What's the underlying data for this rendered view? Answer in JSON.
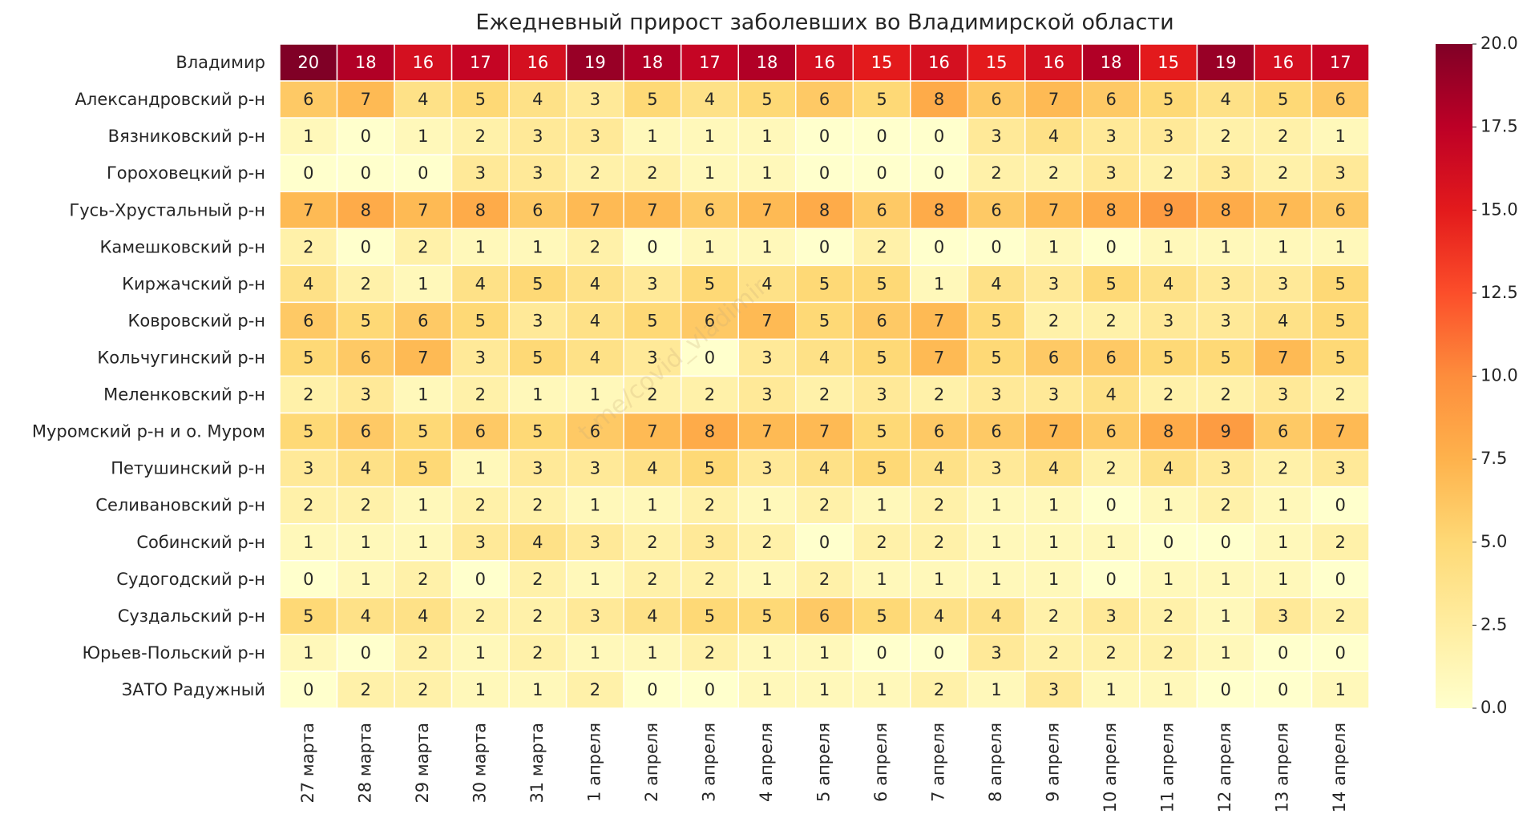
{
  "chart_data": {
    "type": "heatmap",
    "title": "Ежедневный прирост заболевших во Владимирской области",
    "watermark": "t.me/covid_vladimir",
    "categories": [
      "27 марта",
      "28 марта",
      "29 марта",
      "30 марта",
      "31 марта",
      "1 апреля",
      "2 апреля",
      "3 апреля",
      "4 апреля",
      "5 апреля",
      "6 апреля",
      "7 апреля",
      "8 апреля",
      "9 апреля",
      "10 апреля",
      "11 апреля",
      "12 апреля",
      "13 апреля",
      "14 апреля"
    ],
    "rows": [
      "Владимир",
      "Александровский р-н",
      "Вязниковский р-н",
      "Гороховецкий р-н",
      "Гусь-Хрустальный р-н",
      "Камешковский р-н",
      "Киржачский р-н",
      "Ковровский р-н",
      "Кольчугинский р-н",
      "Меленковский р-н",
      "Муромский р-н и о. Муром",
      "Петушинский р-н",
      "Селивановский р-н",
      "Собинский р-н",
      "Судогодский р-н",
      "Суздальский р-н",
      "Юрьев-Польский р-н",
      "ЗАТО Радужный"
    ],
    "values": [
      [
        20,
        18,
        16,
        17,
        16,
        19,
        18,
        17,
        18,
        16,
        15,
        16,
        15,
        16,
        18,
        15,
        19,
        16,
        17
      ],
      [
        6,
        7,
        4,
        5,
        4,
        3,
        5,
        4,
        5,
        6,
        5,
        8,
        6,
        7,
        6,
        5,
        4,
        5,
        6
      ],
      [
        1,
        0,
        1,
        2,
        3,
        3,
        1,
        1,
        1,
        0,
        0,
        0,
        3,
        4,
        3,
        3,
        2,
        2,
        1
      ],
      [
        0,
        0,
        0,
        3,
        3,
        2,
        2,
        1,
        1,
        0,
        0,
        0,
        2,
        2,
        3,
        2,
        3,
        2,
        3
      ],
      [
        7,
        8,
        7,
        8,
        6,
        7,
        7,
        6,
        7,
        8,
        6,
        8,
        6,
        7,
        8,
        9,
        8,
        7,
        6
      ],
      [
        2,
        0,
        2,
        1,
        1,
        2,
        0,
        1,
        1,
        0,
        2,
        0,
        0,
        1,
        0,
        1,
        1,
        1,
        1
      ],
      [
        4,
        2,
        1,
        4,
        5,
        4,
        3,
        5,
        4,
        5,
        5,
        1,
        4,
        3,
        5,
        4,
        3,
        3,
        5
      ],
      [
        6,
        5,
        6,
        5,
        3,
        4,
        5,
        6,
        7,
        5,
        6,
        7,
        5,
        2,
        2,
        3,
        3,
        4,
        5
      ],
      [
        5,
        6,
        7,
        3,
        5,
        4,
        3,
        0,
        3,
        4,
        5,
        7,
        5,
        6,
        6,
        5,
        5,
        7,
        5
      ],
      [
        2,
        3,
        1,
        2,
        1,
        1,
        2,
        2,
        3,
        2,
        3,
        2,
        3,
        3,
        4,
        2,
        2,
        3,
        2
      ],
      [
        5,
        6,
        5,
        6,
        5,
        6,
        7,
        8,
        7,
        7,
        5,
        6,
        6,
        7,
        6,
        8,
        9,
        6,
        7
      ],
      [
        3,
        4,
        5,
        1,
        3,
        3,
        4,
        5,
        3,
        4,
        5,
        4,
        3,
        4,
        2,
        4,
        3,
        2,
        3
      ],
      [
        2,
        2,
        1,
        2,
        2,
        1,
        1,
        2,
        1,
        2,
        1,
        2,
        1,
        1,
        0,
        1,
        2,
        1,
        0
      ],
      [
        1,
        1,
        1,
        3,
        4,
        3,
        2,
        3,
        2,
        0,
        2,
        2,
        1,
        1,
        1,
        0,
        0,
        1,
        2
      ],
      [
        0,
        1,
        2,
        0,
        2,
        1,
        2,
        2,
        1,
        2,
        1,
        1,
        1,
        1,
        0,
        1,
        1,
        1,
        0
      ],
      [
        5,
        4,
        4,
        2,
        2,
        3,
        4,
        5,
        5,
        6,
        5,
        4,
        4,
        2,
        3,
        2,
        1,
        3,
        2
      ],
      [
        1,
        0,
        2,
        1,
        2,
        1,
        1,
        2,
        1,
        1,
        0,
        0,
        3,
        2,
        2,
        2,
        1,
        0,
        0
      ],
      [
        0,
        2,
        2,
        1,
        1,
        2,
        0,
        0,
        1,
        1,
        1,
        2,
        1,
        3,
        1,
        1,
        0,
        0,
        1
      ]
    ],
    "colormap": "YlOrRd",
    "clim": [
      0,
      20
    ],
    "cticks": [
      {
        "value": 0,
        "label": "0.0"
      },
      2.5,
      {
        "value": 5,
        "label": "5.0"
      },
      7.5,
      {
        "value": 10,
        "label": "10.0"
      },
      12.5,
      {
        "value": 15,
        "label": "15.0"
      },
      17.5,
      {
        "value": 20,
        "label": "20.0"
      }
    ]
  }
}
